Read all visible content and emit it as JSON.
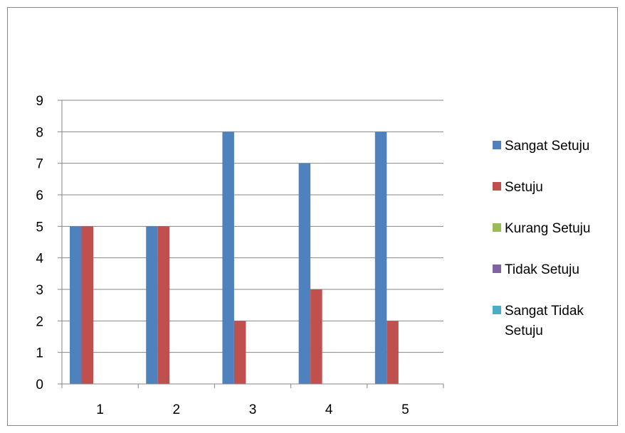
{
  "chart_data": {
    "type": "bar",
    "categories": [
      "1",
      "2",
      "3",
      "4",
      "5"
    ],
    "series": [
      {
        "name": "Sangat Setuju",
        "color": "#4f81bd",
        "values": [
          5,
          5,
          8,
          7,
          8
        ]
      },
      {
        "name": "Setuju",
        "color": "#c0504d",
        "values": [
          5,
          5,
          2,
          3,
          2
        ]
      },
      {
        "name": "Kurang Setuju",
        "color": "#9bbb59",
        "values": [
          0,
          0,
          0,
          0,
          0
        ]
      },
      {
        "name": "Tidak Setuju",
        "color": "#8064a2",
        "values": [
          0,
          0,
          0,
          0,
          0
        ]
      },
      {
        "name": "Sangat Tidak Setuju",
        "color": "#4bacc6",
        "values": [
          0,
          0,
          0,
          0,
          0
        ]
      }
    ],
    "y_ticks": [
      "0",
      "1",
      "2",
      "3",
      "4",
      "5",
      "6",
      "7",
      "8",
      "9"
    ],
    "ylim": [
      0,
      9
    ],
    "title": "",
    "xlabel": "",
    "ylabel": "",
    "grid": true,
    "legend_position": "right"
  }
}
